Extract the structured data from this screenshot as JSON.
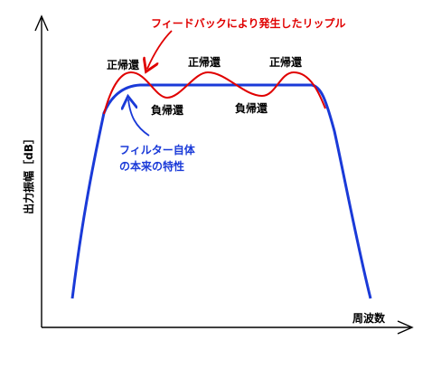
{
  "labels": {
    "ripple_annotation": "フィードバックにより発生したリップル",
    "positive_feedback": "正帰還",
    "negative_feedback": "負帰還",
    "filter_response_line1": "フィルター自体",
    "filter_response_line2": "の本来の特性",
    "y_axis": "出力振幅［dB］",
    "x_axis": "周波数"
  },
  "colors": {
    "ripple_curve": "#e00000",
    "filter_curve": "#1a3ad8",
    "axis": "#000000",
    "text": "#000000"
  }
}
